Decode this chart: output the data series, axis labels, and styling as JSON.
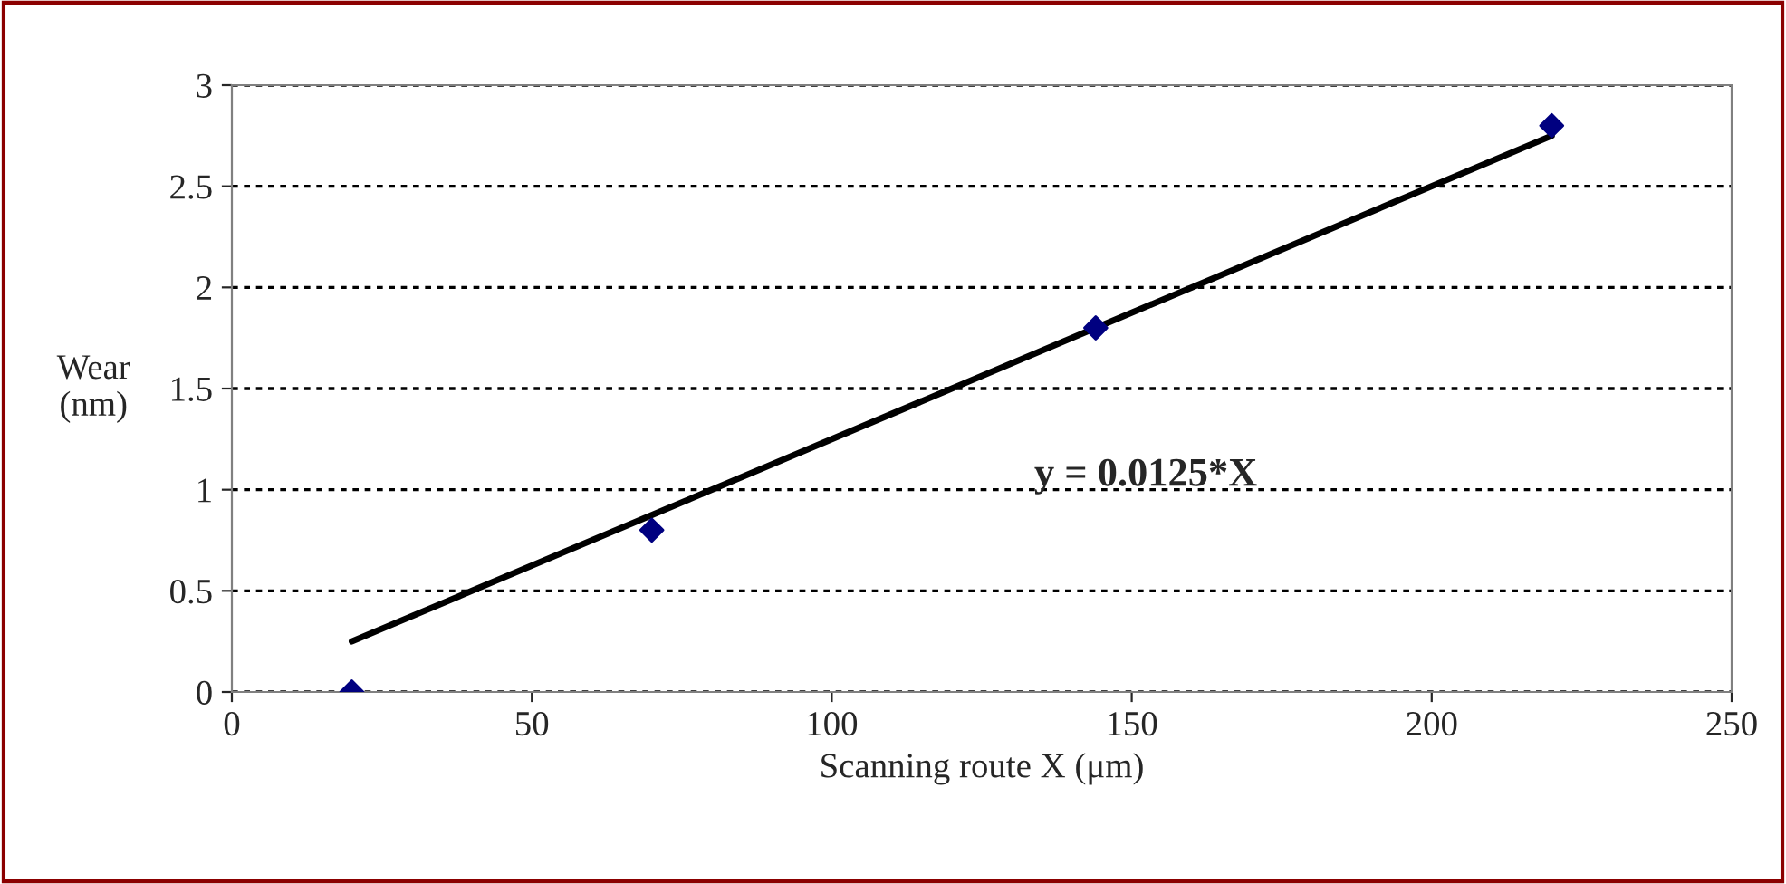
{
  "chart_data": {
    "type": "scatter",
    "xlabel": "Scanning route X (μm)",
    "ylabel": "Wear\n(nm)",
    "series": [
      {
        "type": "scatter",
        "color": "#000080",
        "marker": "diamond",
        "x": [
          20,
          70,
          144,
          220
        ],
        "values": [
          0,
          0.8,
          1.8,
          2.8
        ]
      },
      {
        "type": "line",
        "color": "#000000",
        "marker": "none",
        "line_style": "solid",
        "x": [
          20,
          220
        ],
        "values": [
          0.25,
          2.75
        ]
      }
    ],
    "annotations": [
      "y = 0.0125*X"
    ],
    "xlim": [
      0,
      250
    ],
    "xticks": [
      0,
      50,
      100,
      150,
      200,
      250
    ],
    "ylim": [
      0,
      3
    ],
    "yticks": [
      0,
      0.5,
      1,
      1.5,
      2,
      2.5,
      3
    ],
    "grid": "y",
    "legend": false
  }
}
